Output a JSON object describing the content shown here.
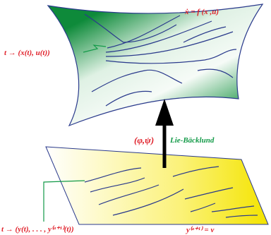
{
  "labels": {
    "state_equation": "ẋ = f (x ,u)",
    "state_trajectory": "t → (x(t), u(t))",
    "transformation": "(φ,ψ)",
    "equivalence": "Lie-Bäcklund",
    "flat_trajectory": "t → (y(t), . . . , y⁽ᵅ⁺¹⁾(t))",
    "trivial_system": "y⁽ᵅ⁺¹⁾ = v"
  }
}
